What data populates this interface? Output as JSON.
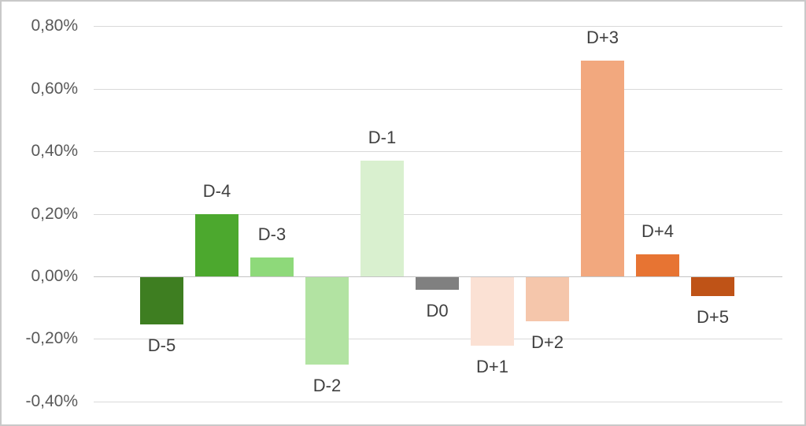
{
  "chart_data": {
    "type": "bar",
    "title": "",
    "xlabel": "",
    "ylabel": "",
    "unit": "%",
    "decimal_separator": ",",
    "categories": [
      "D-5",
      "D-4",
      "D-3",
      "D-2",
      "D-1",
      "D0",
      "D+1",
      "D+2",
      "D+3",
      "D+4",
      "D+5"
    ],
    "values": [
      -0.15,
      0.2,
      0.06,
      -0.28,
      0.37,
      -0.04,
      -0.22,
      -0.14,
      0.69,
      0.07,
      -0.06
    ],
    "bar_colors": [
      "#3e7e21",
      "#4ca82e",
      "#8ed97a",
      "#b2e3a2",
      "#d9f0cf",
      "#808080",
      "#fbe1d4",
      "#f5c6ab",
      "#f2a87e",
      "#e77433",
      "#bf5317"
    ],
    "ylim": [
      -0.4,
      0.8
    ],
    "ytick_step": 0.2,
    "yticks": [
      0.8,
      0.6,
      0.4,
      0.2,
      0.0,
      -0.2,
      -0.4
    ],
    "ytick_labels": [
      "0,80%",
      "0,60%",
      "0,40%",
      "0,20%",
      "0,00%",
      "-0,20%",
      "-0,40%"
    ],
    "grid": true,
    "legend": false,
    "colors": {
      "gridline": "#d9d9d9",
      "zero_line": "#c4c4c4",
      "tick_text": "#595959",
      "label_text": "#3f3f3f",
      "background": "#ffffff",
      "frame_border": "#c9c9c9"
    }
  }
}
